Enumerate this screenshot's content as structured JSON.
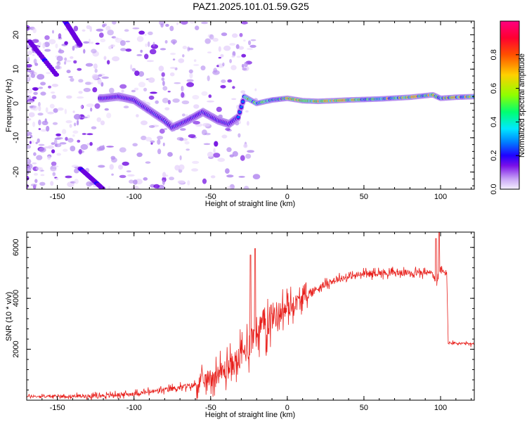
{
  "title": "PAZ1.2025.101.01.59.G25",
  "colors": {
    "snr_line": "#e8201c",
    "colormap": [
      "#e8d6fb",
      "#b58cf0",
      "#6a00e0",
      "#1b00ff",
      "#0070ff",
      "#00e0ff",
      "#00ff66",
      "#a8ff00",
      "#ffd000",
      "#ff5a00",
      "#ff0030",
      "#ff0080"
    ]
  },
  "chart_data": [
    {
      "type": "heatmap",
      "xlabel": "Height of straight line (km)",
      "ylabel": "Frequency (Hz)",
      "xlim": [
        -170,
        122
      ],
      "ylim": [
        -25,
        24
      ],
      "xticks": [
        -150,
        -100,
        -50,
        0,
        50,
        100
      ],
      "yticks": [
        -20,
        -10,
        0,
        10,
        20
      ],
      "ridge": {
        "x": [
          -120,
          -110,
          -100,
          -90,
          -80,
          -75,
          -65,
          -55,
          -45,
          -38,
          -32,
          -28,
          -20,
          -10,
          0,
          10,
          20,
          40,
          60,
          80,
          95,
          100,
          110,
          122
        ],
        "y": [
          1.5,
          2,
          1,
          -2,
          -5,
          -7,
          -5,
          -2.5,
          -5,
          -6,
          -4,
          2,
          0,
          1,
          1.5,
          0.8,
          0.6,
          1,
          1.3,
          1.8,
          2.5,
          1.5,
          1.8,
          2
        ]
      },
      "colorbar": {
        "label": "Normalized spectral amplitude",
        "range": [
          0,
          1
        ],
        "ticks": [
          "0.0",
          "0.2",
          "0.4",
          "0.6",
          "0.8"
        ]
      }
    },
    {
      "type": "line",
      "xlabel": "Height of straight line (km)",
      "ylabel": "SNR (10 * v/v)",
      "xlim": [
        -170,
        122
      ],
      "ylim": [
        0,
        6600
      ],
      "xticks": [
        -150,
        -100,
        -50,
        0,
        50,
        100
      ],
      "yticks": [
        2000,
        4000,
        6000
      ],
      "trend": {
        "x": [
          -170,
          -150,
          -120,
          -100,
          -80,
          -60,
          -50,
          -40,
          -30,
          -25,
          -20,
          -15,
          -10,
          0,
          10,
          20,
          30,
          40,
          50,
          60,
          80,
          95,
          97,
          100,
          102,
          104,
          105,
          122
        ],
        "y": [
          150,
          150,
          180,
          250,
          400,
          600,
          900,
          1200,
          1700,
          2200,
          2700,
          3000,
          3300,
          3600,
          4000,
          4400,
          4700,
          4850,
          4950,
          5000,
          5000,
          5000,
          4500,
          5100,
          5000,
          5000,
          2250,
          2200
        ]
      },
      "spikes": [
        {
          "x": -24,
          "y": 5700
        },
        {
          "x": -21,
          "y": 5950
        },
        {
          "x": 97,
          "y": 6350
        },
        {
          "x": 99,
          "y": 6600
        }
      ]
    }
  ]
}
